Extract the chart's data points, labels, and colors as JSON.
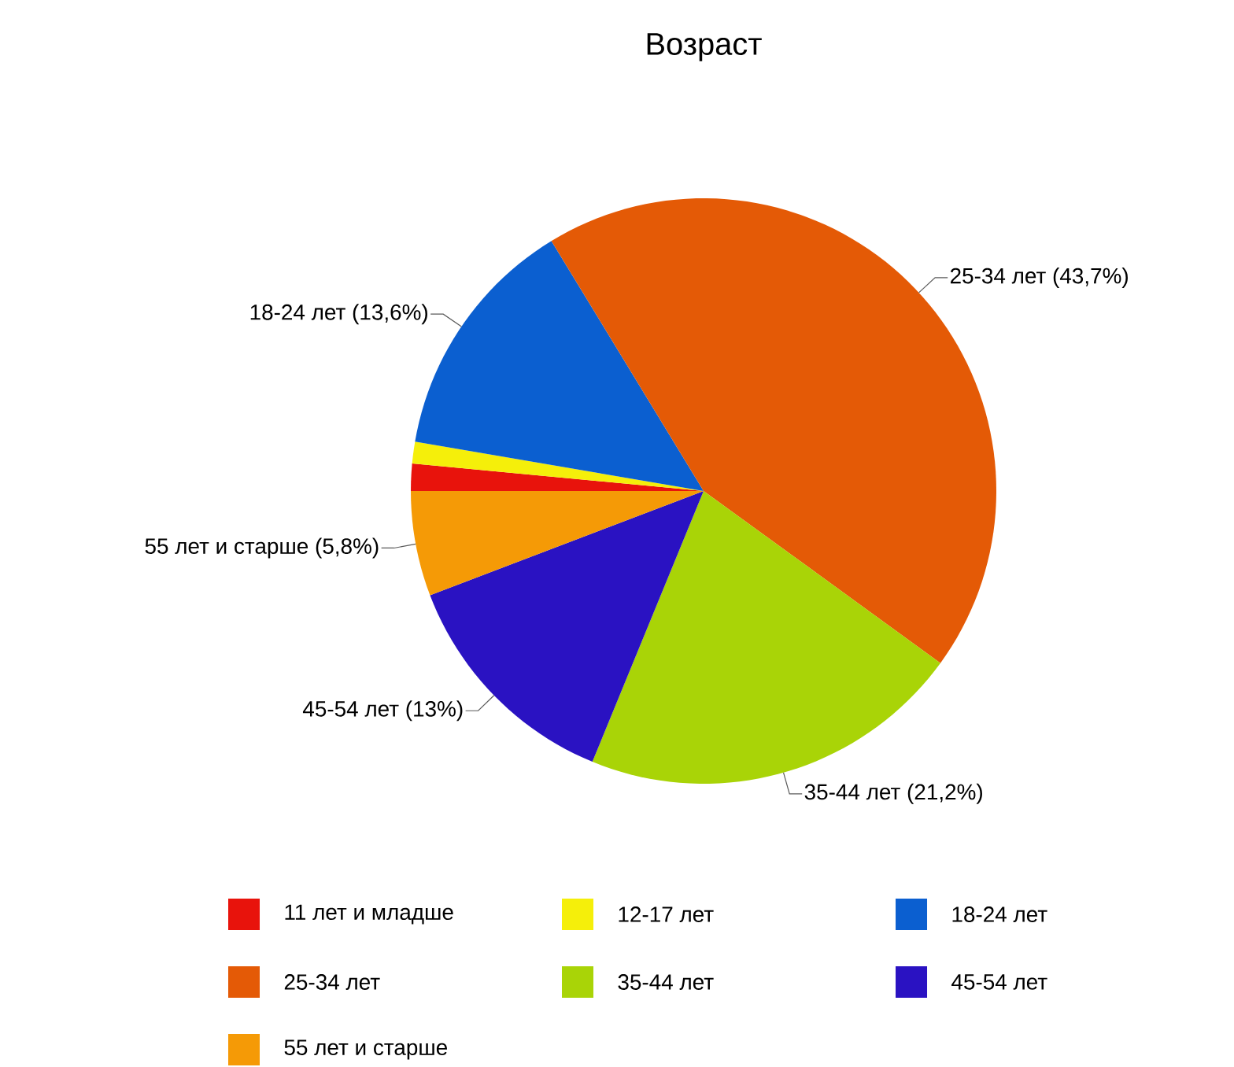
{
  "chart_data": {
    "type": "pie",
    "title": "Возраст",
    "categories": [
      "11 лет и младше",
      "12-17 лет",
      "18-24 лет",
      "25-34 лет",
      "35-44 лет",
      "45-54 лет",
      "55 лет и старше"
    ],
    "values": [
      1.5,
      1.2,
      13.6,
      43.7,
      21.2,
      13,
      5.8
    ],
    "value_labels": [
      null,
      null,
      "18-24 лет (13,6%)",
      "25-34 лет (43,7%)",
      "35-44 лет (21,2%)",
      "45-54 лет (13%)",
      "55 лет и старше (5,8%)"
    ],
    "colors": [
      "#e8130c",
      "#f5ef0a",
      "#0b5fd0",
      "#e45a06",
      "#a9d407",
      "#2a12c2",
      "#f59a06"
    ],
    "legend": "bottom"
  }
}
